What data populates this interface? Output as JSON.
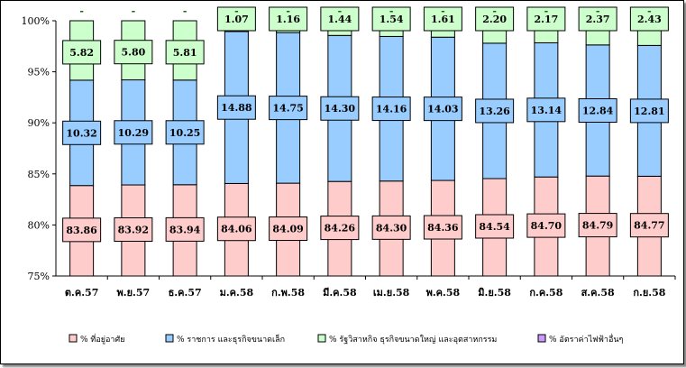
{
  "chart_data": {
    "type": "stacked_bar_percent",
    "categories": [
      "ต.ค.57",
      "พ.ย.57",
      "ธ.ค.57",
      "ม.ค.58",
      "ก.พ.58",
      "มี.ค.58",
      "เม.ย.58",
      "พ.ค.58",
      "มิ.ย.58",
      "ก.ค.58",
      "ส.ค.58",
      "ก.ย.58"
    ],
    "ylim": [
      75,
      100
    ],
    "yticks": [
      "75%",
      "80%",
      "85%",
      "90%",
      "95%",
      "100%"
    ],
    "grid": false,
    "legend_position": "bottom",
    "series": [
      {
        "name": "% ที่อยู่อาศัย",
        "color": "#ffcccc",
        "values": [
          83.86,
          83.92,
          83.94,
          84.06,
          84.09,
          84.26,
          84.3,
          84.36,
          84.54,
          84.7,
          84.79,
          84.77
        ],
        "labels": [
          "83.86",
          "83.92",
          "83.94",
          "84.06",
          "84.09",
          "84.26",
          "84.30",
          "84.36",
          "84.54",
          "84.70",
          "84.79",
          "84.77"
        ]
      },
      {
        "name": "% ราชการ และธุรกิจขนาดเล็ก",
        "color": "#99ccff",
        "values": [
          10.32,
          10.29,
          10.25,
          14.88,
          14.75,
          14.3,
          14.16,
          14.03,
          13.26,
          13.14,
          12.84,
          12.81
        ],
        "labels": [
          "10.32",
          "10.29",
          "10.25",
          "14.88",
          "14.75",
          "14.30",
          "14.16",
          "14.03",
          "13.26",
          "13.14",
          "12.84",
          "12.81"
        ]
      },
      {
        "name": "% รัฐวิสาหกิจ ธุรกิจขนาดใหญ่ และอุตสาหกรรม",
        "color": "#ccffcc",
        "values": [
          5.82,
          5.8,
          5.81,
          1.07,
          1.16,
          1.44,
          1.54,
          1.61,
          2.2,
          2.17,
          2.37,
          2.43
        ],
        "labels": [
          "5.82",
          "5.80",
          "5.81",
          "1.07",
          "1.16",
          "1.44",
          "1.54",
          "1.61",
          "2.20",
          "2.17",
          "2.37",
          "2.43"
        ]
      },
      {
        "name": "% อัตราค่าไฟฟ้าอื่นๆ",
        "color": "#cc99ff",
        "values": [
          0,
          0,
          0,
          0,
          0,
          0,
          0,
          0,
          0,
          0,
          0,
          0
        ],
        "labels": [
          "-",
          "-",
          "-",
          "-",
          "-",
          "-",
          "-",
          "-",
          "-",
          "-",
          "-",
          "-"
        ]
      }
    ]
  }
}
